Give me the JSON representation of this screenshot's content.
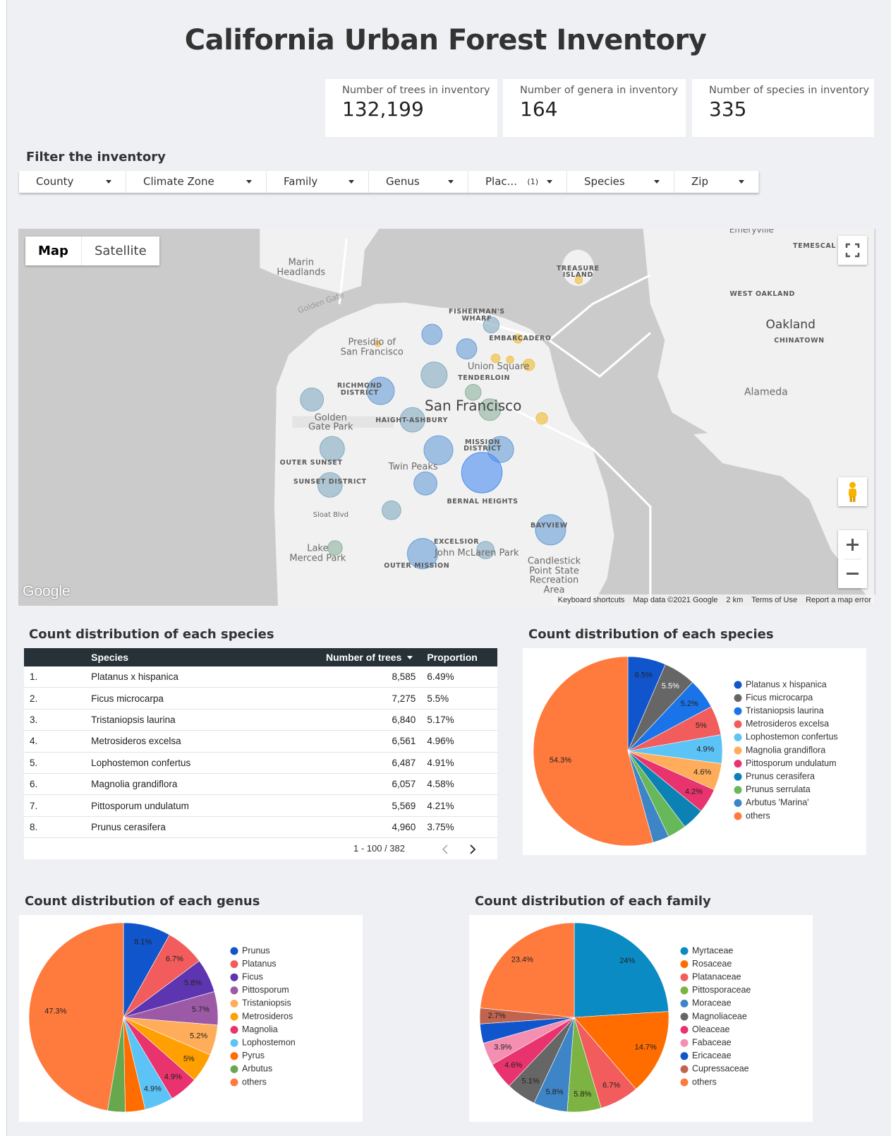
{
  "header": {
    "title": "California Urban Forest Inventory"
  },
  "kpis": [
    {
      "label": "Number of trees in inventory",
      "value": "132,199"
    },
    {
      "label": "Number of genera in inventory",
      "value": "164"
    },
    {
      "label": "Number of species in inventory",
      "value": "335"
    }
  ],
  "filter_section": {
    "title": "Filter the inventory",
    "filters": [
      {
        "label": "County"
      },
      {
        "label": "Climate Zone"
      },
      {
        "label": "Family"
      },
      {
        "label": "Genus"
      },
      {
        "label": "Plac...",
        "selected": "(1)"
      },
      {
        "label": "Species"
      },
      {
        "label": "Zip"
      }
    ]
  },
  "map": {
    "map_types": [
      "Map",
      "Satellite"
    ],
    "labels": [
      "Marin\nHeadlands",
      "Golden Gate",
      "Presidio of\nSan Francisco",
      "FISHERMAN'S\nWHARF",
      "TREASURE\nISLAND",
      "EMBARCADERO",
      "Union Square",
      "TENDERLOIN",
      "RICHMOND\nDISTRICT",
      "San Francisco",
      "HAIGHT-ASHBURY",
      "Golden\nGate Park",
      "MISSION\nDISTRICT",
      "OUTER SUNSET",
      "Twin Peaks",
      "SUNSET DISTRICT",
      "BERNAL HEIGHTS",
      "Sloat Blvd",
      "BAYVIEW",
      "EXCELSIOR",
      "John McLaren Park",
      "Lake\nMerced Park",
      "OUTER MISSION",
      "Candlestick\nPoint State\nRecreation\nArea",
      "Emeryville",
      "TEMESCAL",
      "WEST OAKLAND",
      "Oakland",
      "CHINATOWN",
      "Alameda"
    ],
    "logo": "Google",
    "footer": [
      "Keyboard shortcuts",
      "Map data ©2021 Google",
      "2 km",
      "Terms of Use",
      "Report a map error"
    ]
  },
  "table": {
    "title": "Count distribution of each species",
    "columns": [
      "",
      "Species",
      "Number of trees",
      "Proportion"
    ],
    "rows": [
      [
        "1.",
        "Platanus x hispanica",
        "8,585",
        "6.49%"
      ],
      [
        "2.",
        "Ficus microcarpa",
        "7,275",
        "5.5%"
      ],
      [
        "3.",
        "Tristaniopsis laurina",
        "6,840",
        "5.17%"
      ],
      [
        "4.",
        "Metrosideros excelsa",
        "6,561",
        "4.96%"
      ],
      [
        "5.",
        "Lophostemon confertus",
        "6,487",
        "4.91%"
      ],
      [
        "6.",
        "Magnolia grandiflora",
        "6,057",
        "4.58%"
      ],
      [
        "7.",
        "Pittosporum undulatum",
        "5,569",
        "4.21%"
      ],
      [
        "8.",
        "Prunus cerasifera",
        "4,960",
        "3.75%"
      ]
    ],
    "pagination": "1 - 100 / 382"
  },
  "charts": [
    {
      "type": "pie",
      "title": "Count distribution of each species",
      "categories": [
        "Platanus x hispanica",
        "Ficus microcarpa",
        "Tristaniopsis laurina",
        "Metrosideros excelsa",
        "Lophostemon confertus",
        "Magnolia grandiflora",
        "Pittosporum undulatum",
        "Prunus cerasifera",
        "Prunus serrulata",
        "Arbutus 'Marina'",
        "others"
      ],
      "values": [
        6.5,
        5.5,
        5.2,
        5,
        4.9,
        4.6,
        4.2,
        3.8,
        3.2,
        2.8,
        54.3
      ],
      "value_labels": [
        "6.5%",
        "5.5%",
        "5.2%",
        "5%",
        "4.9%",
        "4.6%",
        "4.2%",
        null,
        null,
        null,
        "54.3%"
      ],
      "colors": [
        "#1155cc",
        "#666666",
        "#1a73e8",
        "#f25c5c",
        "#5bc3f5",
        "#ffad5b",
        "#e8336e",
        "#0b82b3",
        "#67b85a",
        "#3d85c6",
        "#ff7a3d"
      ]
    },
    {
      "type": "pie",
      "title": "Count distribution of each genus",
      "categories": [
        "Prunus",
        "Platanus",
        "Ficus",
        "Pittosporum",
        "Tristaniopsis",
        "Metrosideros",
        "Magnolia",
        "Lophostemon",
        "Pyrus",
        "Arbutus",
        "others"
      ],
      "values": [
        8.1,
        6.7,
        5.8,
        5.7,
        5.2,
        5,
        4.9,
        4.9,
        3.4,
        3,
        47.3
      ],
      "value_labels": [
        "8.1%",
        "6.7%",
        "5.8%",
        "5.7%",
        "5.2%",
        "5%",
        "4.9%",
        "4.9%",
        null,
        null,
        "47.3%"
      ],
      "colors": [
        "#1155cc",
        "#f25c5c",
        "#5e35b1",
        "#9c5aa6",
        "#ffad5b",
        "#ffa000",
        "#e8336e",
        "#5bc3f5",
        "#ff6d00",
        "#67a84f",
        "#ff7a3d"
      ]
    },
    {
      "type": "pie",
      "title": "Count distribution of each family",
      "categories": [
        "Myrtaceae",
        "Rosaceae",
        "Platanaceae",
        "Pittosporaceae",
        "Moraceae",
        "Magnoliaceae",
        "Oleaceae",
        "Fabaceae",
        "Ericaceae",
        "Cupressaceae",
        "others"
      ],
      "values": [
        24,
        14.7,
        6.7,
        5.8,
        5.8,
        5.1,
        4.6,
        3.9,
        3.3,
        2.7,
        23.4
      ],
      "value_labels": [
        "24%",
        "14.7%",
        "6.7%",
        "5.8%",
        "5.8%",
        "5.1%",
        "4.6%",
        "3.9%",
        null,
        "2.7%",
        "23.4%"
      ],
      "colors": [
        "#0b8bc4",
        "#ff6d00",
        "#f25c5c",
        "#7cb342",
        "#3d85c6",
        "#666666",
        "#e8336e",
        "#f48fb1",
        "#1155cc",
        "#c0644f",
        "#ff7a3d"
      ]
    }
  ]
}
